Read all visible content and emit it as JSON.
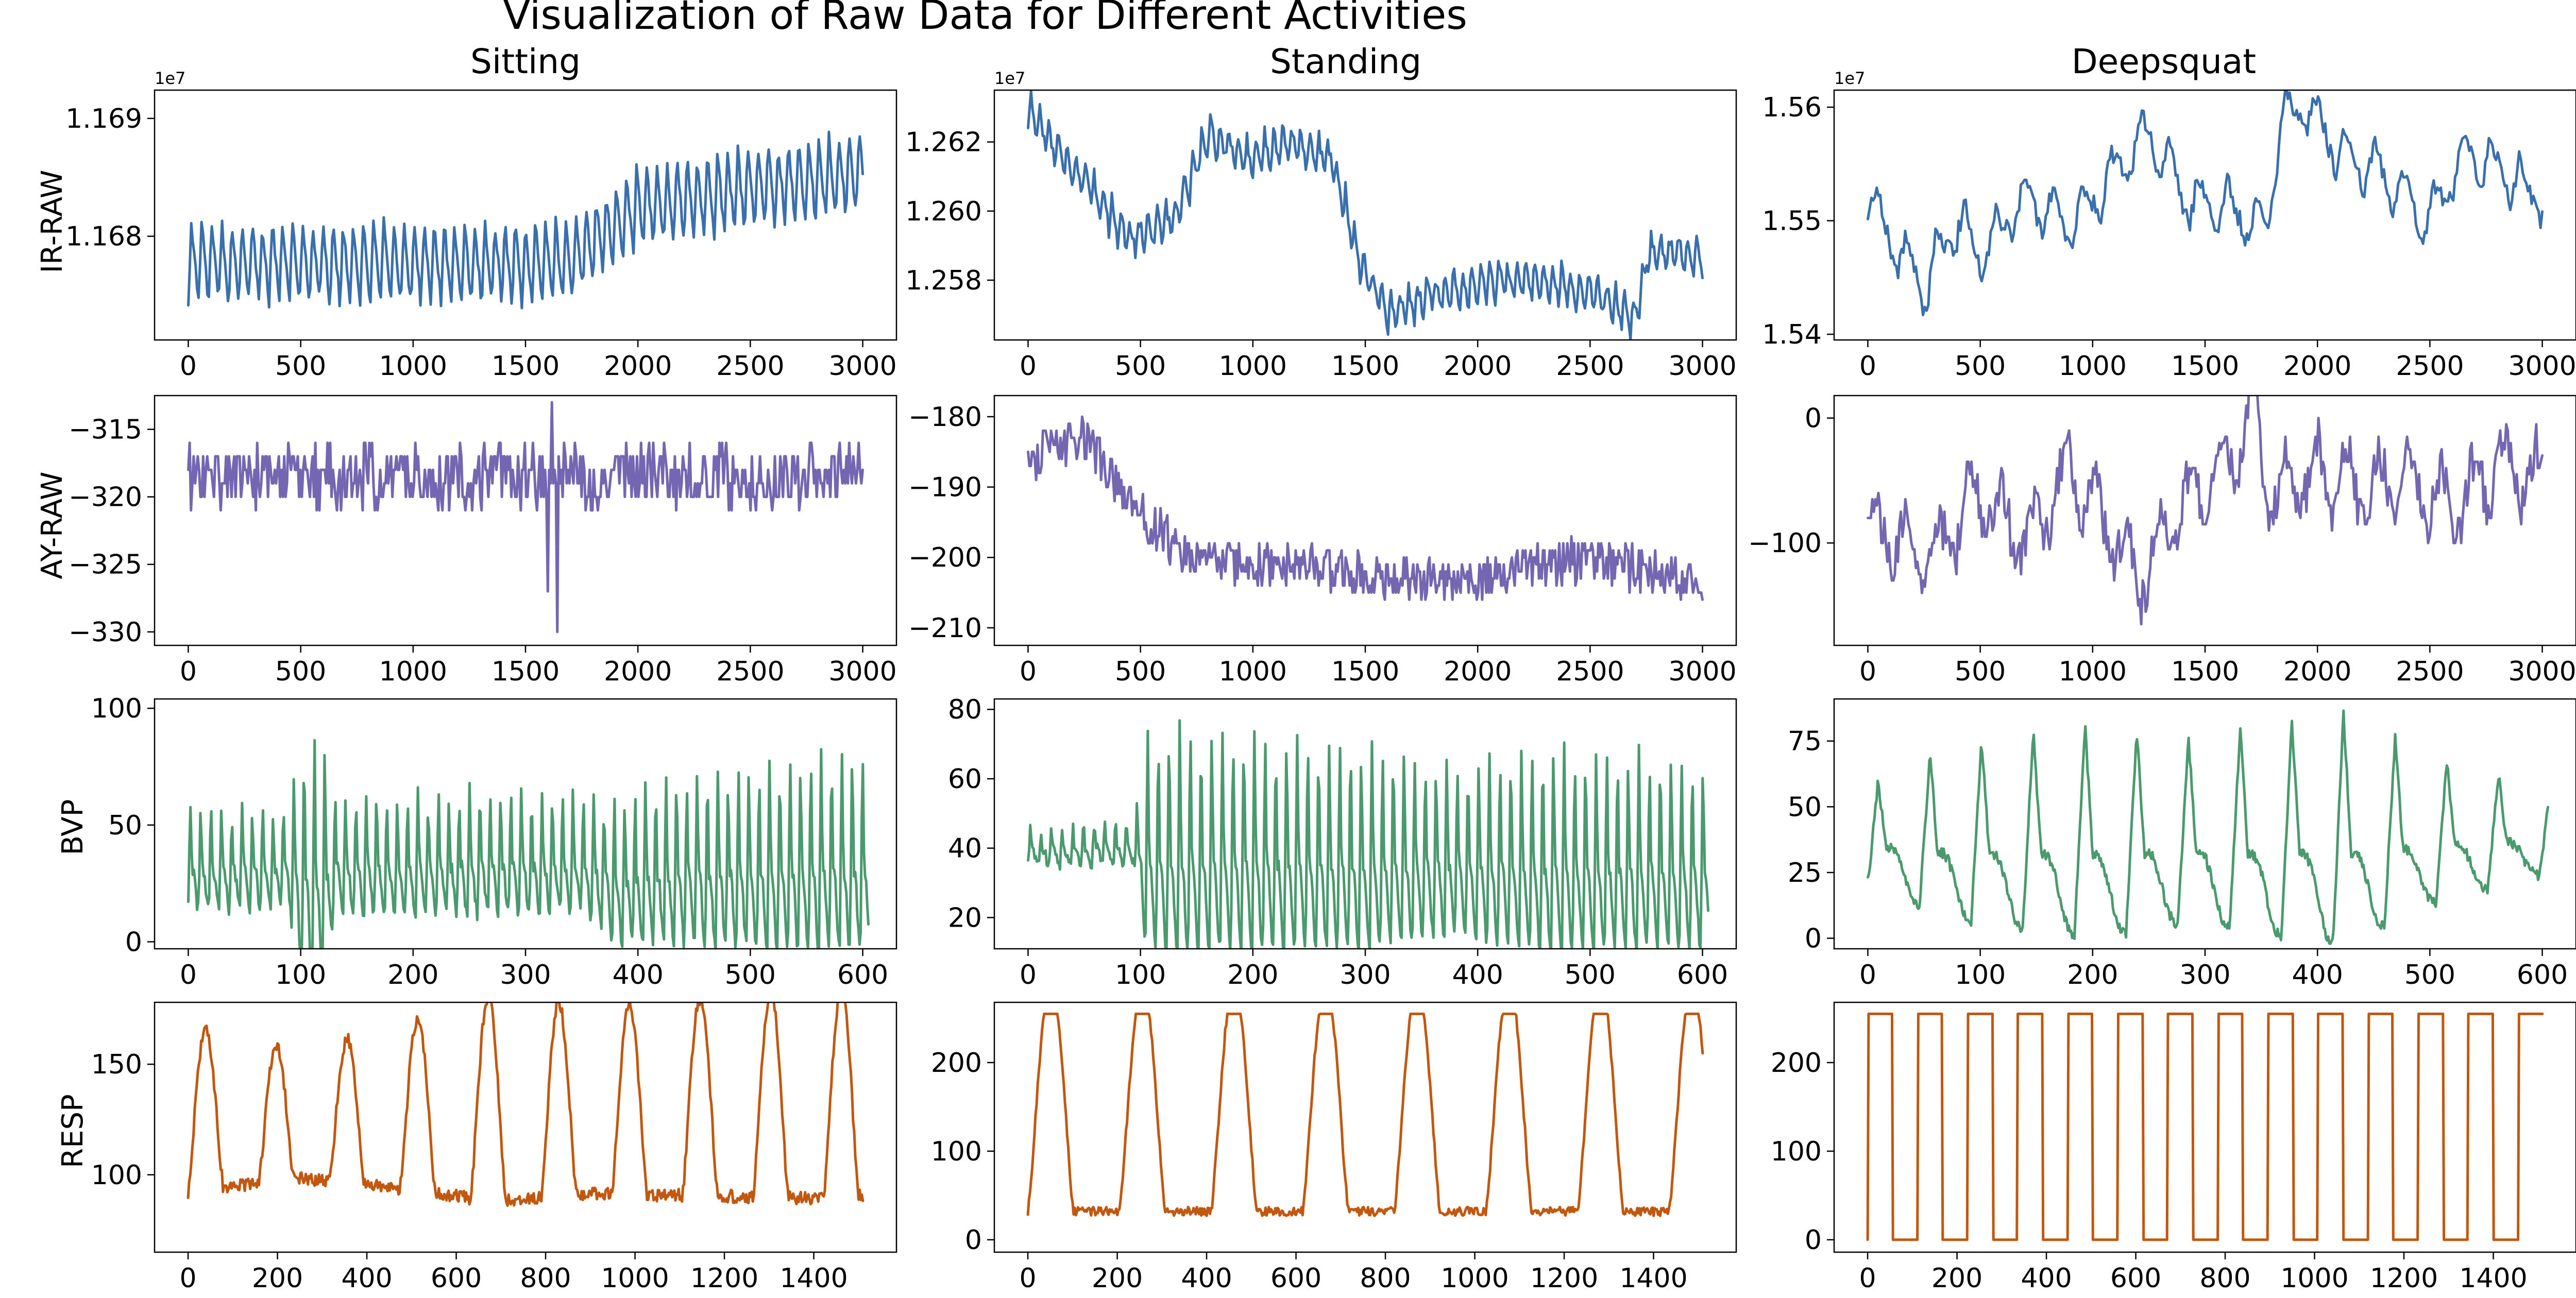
{
  "figure": {
    "title": "Visualization of Raw Data for Different Activities",
    "columns": [
      "Sitting",
      "Standing",
      "Deepsquat"
    ],
    "rows": [
      "IR-RAW",
      "AY-RAW",
      "BVP",
      "RESP"
    ]
  },
  "colors": {
    "IR-RAW": "#3a6fad",
    "AY-RAW": "#7466b0",
    "BVP": "#4a9a6e",
    "RESP": "#c2570f"
  },
  "chart_data": [
    {
      "type": "line",
      "activity": "Sitting",
      "signal": "IR-RAW",
      "offset_text": "1e7",
      "xlim": [
        -150,
        3150
      ],
      "ylim": [
        1.16712,
        1.16924
      ],
      "xticks": [
        0,
        500,
        1000,
        1500,
        2000,
        2500,
        3000
      ],
      "xtick_labels": [
        "0",
        "500",
        "1000",
        "1500",
        "2000",
        "2500",
        "3000"
      ],
      "yticks": [
        1.168,
        1.169
      ],
      "ytick_labels": [
        "1.168",
        "1.169"
      ],
      "x_range": [
        0,
        3000
      ],
      "n_points": 460,
      "pattern": {
        "baseline": [
          [
            0,
            1.16778
          ],
          [
            1500,
            1.16776
          ],
          [
            1700,
            1.1678
          ],
          [
            2000,
            1.16825
          ],
          [
            2500,
            1.1684
          ],
          [
            3000,
            1.16855
          ]
        ],
        "osc_amp": 0.00036,
        "osc_period": 45,
        "shape": "saw",
        "noise": 5e-05
      }
    },
    {
      "type": "line",
      "activity": "Standing",
      "signal": "IR-RAW",
      "offset_text": "1e7",
      "xlim": [
        -150,
        3150
      ],
      "ylim": [
        1.25627,
        1.2635
      ],
      "xticks": [
        0,
        500,
        1000,
        1500,
        2000,
        2500,
        3000
      ],
      "xtick_labels": [
        "0",
        "500",
        "1000",
        "1500",
        "2000",
        "2500",
        "3000"
      ],
      "yticks": [
        1.258,
        1.26,
        1.262
      ],
      "ytick_labels": [
        "1.258",
        "1.260",
        "1.262"
      ],
      "x_range": [
        0,
        3000
      ],
      "n_points": 460,
      "pattern": {
        "baseline": [
          [
            0,
            1.263
          ],
          [
            100,
            1.262
          ],
          [
            300,
            1.2605
          ],
          [
            450,
            1.2592
          ],
          [
            650,
            1.2598
          ],
          [
            800,
            1.2622
          ],
          [
            1000,
            1.2615
          ],
          [
            1150,
            1.262
          ],
          [
            1350,
            1.2615
          ],
          [
            1480,
            1.2585
          ],
          [
            1600,
            1.257
          ],
          [
            1800,
            1.2576
          ],
          [
            2100,
            1.258
          ],
          [
            2400,
            1.2578
          ],
          [
            2600,
            1.2574
          ],
          [
            2700,
            1.2568
          ],
          [
            2760,
            1.2588
          ],
          [
            3000,
            1.2588
          ]
        ],
        "osc_amp": 0.0006,
        "osc_period": 40,
        "shape": "saw",
        "noise": 0.0002
      }
    },
    {
      "type": "line",
      "activity": "Deepsquat",
      "signal": "IR-RAW",
      "offset_text": "1e7",
      "xlim": [
        -150,
        3150
      ],
      "ylim": [
        1.5395,
        1.5615
      ],
      "xticks": [
        0,
        500,
        1000,
        1500,
        2000,
        2500,
        3000
      ],
      "xtick_labels": [
        "0",
        "500",
        "1000",
        "1500",
        "2000",
        "2500",
        "3000"
      ],
      "yticks": [
        1.54,
        1.55,
        1.56
      ],
      "ytick_labels": [
        "1.54",
        "1.55",
        "1.56"
      ],
      "x_range": [
        0,
        3000
      ],
      "n_points": 380,
      "pattern": {
        "baseline": [
          [
            0,
            1.5525
          ],
          [
            100,
            1.5485
          ],
          [
            250,
            1.544
          ],
          [
            400,
            1.55
          ],
          [
            500,
            1.547
          ],
          [
            700,
            1.552
          ],
          [
            900,
            1.5495
          ],
          [
            1050,
            1.553
          ],
          [
            1250,
            1.558
          ],
          [
            1400,
            1.552
          ],
          [
            1600,
            1.551
          ],
          [
            1780,
            1.5495
          ],
          [
            1830,
            1.559
          ],
          [
            1950,
            1.56
          ],
          [
            2100,
            1.556
          ],
          [
            2300,
            1.554
          ],
          [
            2500,
            1.55
          ],
          [
            2650,
            1.556
          ],
          [
            2800,
            1.5545
          ],
          [
            3000,
            1.552
          ]
        ],
        "osc_amp": 0.0025,
        "osc_period": 130,
        "shape": "saw",
        "noise": 0.0009
      }
    },
    {
      "type": "line",
      "activity": "Sitting",
      "signal": "AY-RAW",
      "xlim": [
        -150,
        3150
      ],
      "ylim": [
        -331,
        -312.5
      ],
      "xticks": [
        0,
        500,
        1000,
        1500,
        2000,
        2500,
        3000
      ],
      "xtick_labels": [
        "0",
        "500",
        "1000",
        "1500",
        "2000",
        "2500",
        "3000"
      ],
      "yticks": [
        -330,
        -325,
        -320,
        -315
      ],
      "ytick_labels": [
        "−330",
        "−325",
        "−320",
        "−315"
      ],
      "x_range": [
        0,
        3000
      ],
      "n_points": 500,
      "pattern": {
        "baseline": [
          [
            0,
            -318.5
          ],
          [
            3000,
            -318.5
          ]
        ],
        "osc_amp": 0,
        "osc_period": 50,
        "shape": "sin",
        "noise": 2.3,
        "quantize": 1,
        "spikes": [
          [
            1640,
            -330
          ],
          [
            1620,
            -313
          ],
          [
            1600,
            -327
          ]
        ]
      }
    },
    {
      "type": "line",
      "activity": "Standing",
      "signal": "AY-RAW",
      "xlim": [
        -150,
        3150
      ],
      "ylim": [
        -212.5,
        -177
      ],
      "xticks": [
        0,
        500,
        1000,
        1500,
        2000,
        2500,
        3000
      ],
      "xtick_labels": [
        "0",
        "500",
        "1000",
        "1500",
        "2000",
        "2500",
        "3000"
      ],
      "yticks": [
        -210,
        -200,
        -190,
        -180
      ],
      "ytick_labels": [
        "−210",
        "−200",
        "−190",
        "−180"
      ],
      "x_range": [
        0,
        3000
      ],
      "n_points": 500,
      "pattern": {
        "baseline": [
          [
            0,
            -186
          ],
          [
            250,
            -183
          ],
          [
            400,
            -190
          ],
          [
            600,
            -197
          ],
          [
            800,
            -201
          ],
          [
            1200,
            -201
          ],
          [
            1600,
            -203
          ],
          [
            2000,
            -203
          ],
          [
            2500,
            -200
          ],
          [
            3000,
            -204
          ]
        ],
        "osc_amp": 0,
        "osc_period": 50,
        "shape": "sin",
        "noise": 3.2,
        "quantize": 1
      }
    },
    {
      "type": "line",
      "activity": "Deepsquat",
      "signal": "AY-RAW",
      "xlim": [
        -150,
        3150
      ],
      "ylim": [
        -182,
        18
      ],
      "xticks": [
        0,
        500,
        1000,
        1500,
        2000,
        2500,
        3000
      ],
      "xtick_labels": [
        "0",
        "500",
        "1000",
        "1500",
        "2000",
        "2500",
        "3000"
      ],
      "yticks": [
        -100,
        0
      ],
      "ytick_labels": [
        "−100",
        "0"
      ],
      "x_range": [
        0,
        3000
      ],
      "n_points": 450,
      "pattern": {
        "baseline": [
          [
            0,
            -90
          ],
          [
            300,
            -110
          ],
          [
            500,
            -60
          ],
          [
            700,
            -100
          ],
          [
            900,
            -40
          ],
          [
            1100,
            -100
          ],
          [
            1200,
            -130
          ],
          [
            1400,
            -70
          ],
          [
            1600,
            -40
          ],
          [
            1700,
            10
          ],
          [
            1800,
            -60
          ],
          [
            2000,
            -40
          ],
          [
            2200,
            -60
          ],
          [
            2400,
            -50
          ],
          [
            2600,
            -70
          ],
          [
            2800,
            -40
          ],
          [
            3000,
            -50
          ]
        ],
        "osc_amp": 25,
        "osc_period": 140,
        "shape": "sin",
        "noise": 18,
        "quantize": 5
      }
    },
    {
      "type": "line",
      "activity": "Sitting",
      "signal": "BVP",
      "xlim": [
        -30,
        630
      ],
      "ylim": [
        -3,
        104
      ],
      "xticks": [
        0,
        100,
        200,
        300,
        400,
        500,
        600
      ],
      "xtick_labels": [
        "0",
        "100",
        "200",
        "300",
        "400",
        "500",
        "600"
      ],
      "yticks": [
        0,
        50,
        100
      ],
      "ytick_labels": [
        "0",
        "50",
        "100"
      ],
      "x_range": [
        0,
        605
      ],
      "n_points": 620,
      "pattern": {
        "baseline": [
          [
            0,
            35
          ],
          [
            350,
            38
          ],
          [
            380,
            30
          ],
          [
            420,
            35
          ],
          [
            605,
            38
          ]
        ],
        "osc_amp": 20,
        "osc_period": 9.2,
        "shape": "pulse",
        "noise": 3,
        "amp_mod": [
          [
            0,
            1
          ],
          [
            90,
            1
          ],
          [
            100,
            2.4
          ],
          [
            120,
            2.4
          ],
          [
            130,
            1.2
          ],
          [
            360,
            1.2
          ],
          [
            400,
            1.6
          ],
          [
            600,
            2.0
          ]
        ]
      }
    },
    {
      "type": "line",
      "activity": "Standing",
      "signal": "BVP",
      "xlim": [
        -30,
        630
      ],
      "ylim": [
        11,
        83
      ],
      "xticks": [
        0,
        100,
        200,
        300,
        400,
        500,
        600
      ],
      "xtick_labels": [
        "0",
        "100",
        "200",
        "300",
        "400",
        "500",
        "600"
      ],
      "yticks": [
        20,
        40,
        60,
        80
      ],
      "ytick_labels": [
        "20",
        "40",
        "60",
        "80"
      ],
      "x_range": [
        0,
        605
      ],
      "n_points": 620,
      "pattern": {
        "baseline": [
          [
            0,
            40
          ],
          [
            100,
            42
          ],
          [
            300,
            40
          ],
          [
            605,
            38
          ]
        ],
        "osc_amp": 6,
        "osc_period": 9.5,
        "shape": "pulse",
        "noise": 1.5,
        "amp_mod": [
          [
            0,
            0.8
          ],
          [
            95,
            1
          ],
          [
            105,
            5
          ],
          [
            300,
            4.5
          ],
          [
            380,
            3.8
          ],
          [
            450,
            4.5
          ],
          [
            605,
            4.2
          ]
        ]
      }
    },
    {
      "type": "line",
      "activity": "Deepsquat",
      "signal": "BVP",
      "xlim": [
        -30,
        630
      ],
      "ylim": [
        -4,
        91
      ],
      "xticks": [
        0,
        100,
        200,
        300,
        400,
        500,
        600
      ],
      "xtick_labels": [
        "0",
        "100",
        "200",
        "300",
        "400",
        "500",
        "600"
      ],
      "yticks": [
        0,
        25,
        50,
        75
      ],
      "ytick_labels": [
        "0",
        "25",
        "50",
        "75"
      ],
      "x_range": [
        0,
        605
      ],
      "n_points": 620,
      "pattern": {
        "baseline": [
          [
            0,
            38
          ],
          [
            605,
            40
          ]
        ],
        "osc_amp": 28,
        "osc_period": 46,
        "shape": "pulse",
        "noise": 2,
        "amp_mod": [
          [
            0,
            0.6
          ],
          [
            60,
            1
          ],
          [
            200,
            1.3
          ],
          [
            280,
            1.1
          ],
          [
            420,
            1.4
          ],
          [
            500,
            0.9
          ],
          [
            605,
            0.5
          ]
        ]
      }
    },
    {
      "type": "line",
      "activity": "Sitting",
      "signal": "RESP",
      "xlim": [
        -75,
        1585
      ],
      "ylim": [
        65,
        178
      ],
      "xticks": [
        0,
        200,
        400,
        600,
        800,
        1000,
        1200,
        1400
      ],
      "xtick_labels": [
        "0",
        "200",
        "400",
        "600",
        "800",
        "1000",
        "1200",
        "1400"
      ],
      "yticks": [
        100,
        150
      ],
      "ytick_labels": [
        "100",
        "150"
      ],
      "x_range": [
        0,
        1510
      ],
      "n_points": 620,
      "pattern": {
        "baseline": [
          [
            0,
            115
          ],
          [
            1510,
            118
          ]
        ],
        "osc_amp": 38,
        "osc_period": 158,
        "shape": "resp",
        "noise": 3,
        "amp_mod": [
          [
            0,
            1
          ],
          [
            250,
            0.75
          ],
          [
            400,
            0.9
          ],
          [
            700,
            1.25
          ],
          [
            900,
            1.1
          ],
          [
            1400,
            1.25
          ],
          [
            1510,
            1.2
          ]
        ]
      }
    },
    {
      "type": "line",
      "activity": "Standing",
      "signal": "RESP",
      "xlim": [
        -75,
        1585
      ],
      "ylim": [
        -14,
        268
      ],
      "xticks": [
        0,
        200,
        400,
        600,
        800,
        1000,
        1200,
        1400
      ],
      "xtick_labels": [
        "0",
        "200",
        "400",
        "600",
        "800",
        "1000",
        "1200",
        "1400"
      ],
      "yticks": [
        0,
        100,
        200
      ],
      "ytick_labels": [
        "0",
        "100",
        "200"
      ],
      "x_range": [
        0,
        1510
      ],
      "n_points": 620,
      "pattern": {
        "baseline": [
          [
            0,
            110
          ],
          [
            1510,
            110
          ]
        ],
        "osc_amp": 130,
        "osc_period": 205,
        "shape": "resp",
        "noise": 5,
        "clip": [
          0,
          255
        ]
      }
    },
    {
      "type": "line",
      "activity": "Deepsquat",
      "signal": "RESP",
      "xlim": [
        -75,
        1585
      ],
      "ylim": [
        -14,
        268
      ],
      "xticks": [
        0,
        200,
        400,
        600,
        800,
        1000,
        1200,
        1400
      ],
      "xtick_labels": [
        "0",
        "200",
        "400",
        "600",
        "800",
        "1000",
        "1200",
        "1400"
      ],
      "yticks": [
        0,
        100,
        200
      ],
      "ytick_labels": [
        "0",
        "100",
        "200"
      ],
      "x_range": [
        0,
        1510
      ],
      "n_points": 720,
      "pattern": {
        "baseline": [
          [
            0,
            125
          ],
          [
            1510,
            125
          ]
        ],
        "osc_amp": 300,
        "osc_period": 112,
        "shape": "square",
        "noise": 10,
        "clip": [
          0,
          255
        ]
      }
    }
  ]
}
